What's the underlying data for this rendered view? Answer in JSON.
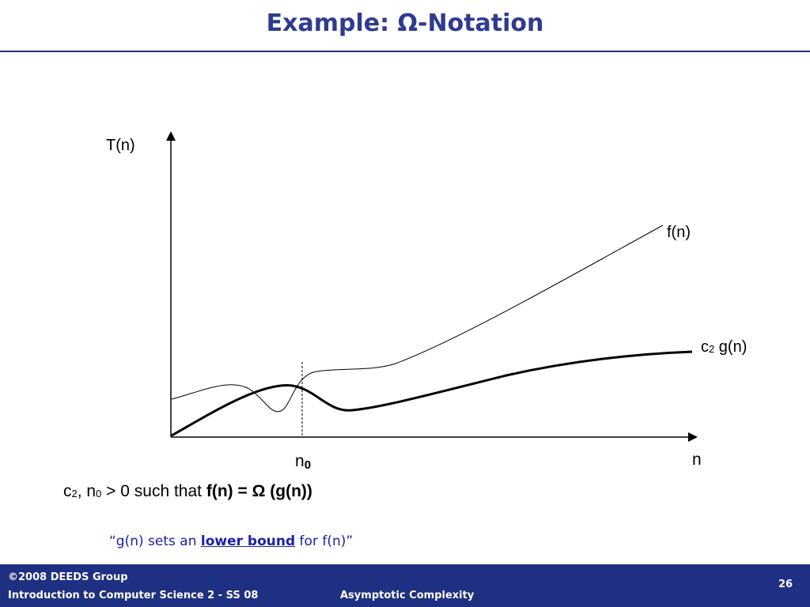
{
  "slide": {
    "title": "Example: Ω-Notation",
    "page_number": "26"
  },
  "diagram": {
    "y_axis_label": "T(n)",
    "x_axis_label": "n",
    "n0_base": "n",
    "n0_sub": "0",
    "f_label": "f(n)",
    "g_label_c": "c",
    "g_label_sub": "2",
    "g_label_rest": " g(n)"
  },
  "condition": {
    "c": "c",
    "c_sub": "2",
    "mid": ", n",
    "n_sub": "0",
    "rest": " > 0  such that ",
    "formula": "f(n) = Ω (g(n))"
  },
  "quote": {
    "prefix": "“g(n) sets an ",
    "emphasis": "lower bound",
    "suffix": " for f(n)”"
  },
  "footer": {
    "copyright": "©2008 DEEDS Group",
    "course": "Introduction to Computer Science 2 - SS 08",
    "topic": "Asymptotic Complexity"
  },
  "colors": {
    "title": "#2e3b8f",
    "footer_bg": "#1f2f82",
    "quote": "#1a1fa8"
  }
}
